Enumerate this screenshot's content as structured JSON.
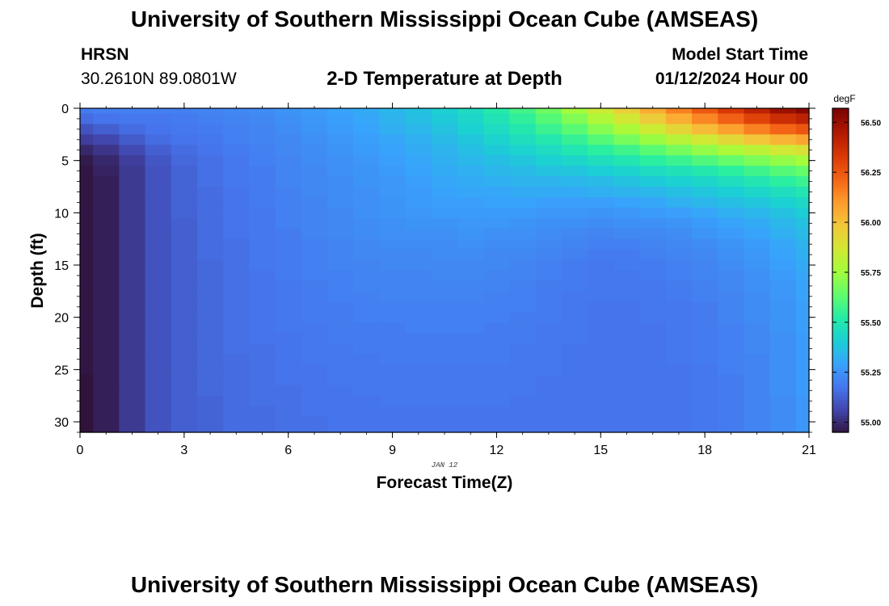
{
  "header": {
    "title": "University of Southern Mississippi Ocean Cube (AMSEAS)",
    "station": "HRSN",
    "coordinates": "30.2610N  89.0801W",
    "plot_title": "2-D Temperature at Depth",
    "model_start_label": "Model Start Time",
    "model_start_value": "01/12/2024 Hour 00"
  },
  "footer": {
    "title": "University of Southern Mississippi Ocean Cube (AMSEAS)"
  },
  "chart_data": {
    "type": "heatmap",
    "title": "2-D Temperature at Depth",
    "xlabel": "Forecast Time(Z)",
    "ylabel": "Depth (ft)",
    "x_date_label": "JAN 12",
    "xlim": [
      0,
      21
    ],
    "ylim": [
      31,
      0
    ],
    "x_ticks": [
      0,
      3,
      6,
      9,
      12,
      15,
      18,
      21
    ],
    "y_ticks": [
      0,
      5,
      10,
      15,
      20,
      25,
      30
    ],
    "colorbar": {
      "unit": "degF",
      "range": [
        54.95,
        56.57
      ],
      "ticks": [
        "56.50",
        "56.25",
        "56.00",
        "55.75",
        "55.50",
        "55.25",
        "55.00"
      ],
      "colormap": [
        "#30123b",
        "#4145ab",
        "#4675ed",
        "#39a2fc",
        "#1bcfd4",
        "#24eca6",
        "#61fc6c",
        "#a4fc3b",
        "#d1e834",
        "#f3c63a",
        "#fe9b2d",
        "#f36315",
        "#d93806",
        "#b11901",
        "#7a0402"
      ]
    },
    "x": [
      0,
      0.75,
      1.5,
      2.25,
      3,
      3.75,
      4.5,
      5.25,
      6,
      6.75,
      7.5,
      8.25,
      9,
      9.75,
      10.5,
      11.25,
      12,
      12.75,
      13.5,
      14.25,
      15,
      15.75,
      16.5,
      17.25,
      18,
      18.75,
      19.5,
      20.25,
      21
    ],
    "y": [
      0,
      1,
      2,
      3,
      4,
      5,
      6,
      7,
      8,
      9,
      10,
      11,
      12,
      13,
      14,
      15,
      16,
      17,
      18,
      19,
      20,
      21,
      22,
      23,
      24,
      25,
      26,
      27,
      28,
      29,
      30
    ],
    "z": [
      [
        55.2,
        55.21,
        55.21,
        55.21,
        55.21,
        55.22,
        55.23,
        55.24,
        55.26,
        55.28,
        55.3,
        55.32,
        55.35,
        55.38,
        55.42,
        55.46,
        55.52,
        55.59,
        55.67,
        55.76,
        55.86,
        55.96,
        56.06,
        56.16,
        56.25,
        56.34,
        56.42,
        56.5,
        56.54
      ],
      [
        55.16,
        55.18,
        55.19,
        55.19,
        55.2,
        55.21,
        55.22,
        55.23,
        55.25,
        55.27,
        55.29,
        55.31,
        55.34,
        55.37,
        55.4,
        55.44,
        55.49,
        55.55,
        55.62,
        55.7,
        55.79,
        55.88,
        55.97,
        56.06,
        56.15,
        56.23,
        56.31,
        56.38,
        56.42
      ],
      [
        55.1,
        55.13,
        55.16,
        55.18,
        55.19,
        55.2,
        55.21,
        55.22,
        55.24,
        55.26,
        55.28,
        55.3,
        55.33,
        55.35,
        55.38,
        55.42,
        55.46,
        55.51,
        55.57,
        55.63,
        55.71,
        55.78,
        55.86,
        55.94,
        56.02,
        56.09,
        56.16,
        56.22,
        56.26
      ],
      [
        55.05,
        55.07,
        55.12,
        55.16,
        55.18,
        55.19,
        55.21,
        55.22,
        55.23,
        55.25,
        55.27,
        55.29,
        55.31,
        55.33,
        55.36,
        55.39,
        55.43,
        55.47,
        55.51,
        55.56,
        55.62,
        55.68,
        55.74,
        55.81,
        55.87,
        55.93,
        55.99,
        56.04,
        56.08
      ],
      [
        55.0,
        55.03,
        55.08,
        55.13,
        55.16,
        55.18,
        55.2,
        55.21,
        55.23,
        55.24,
        55.26,
        55.28,
        55.3,
        55.32,
        55.34,
        55.37,
        55.4,
        55.43,
        55.46,
        55.5,
        55.54,
        55.58,
        55.63,
        55.68,
        55.73,
        55.78,
        55.82,
        55.87,
        55.9
      ],
      [
        54.97,
        55.0,
        55.05,
        55.11,
        55.15,
        55.17,
        55.19,
        55.21,
        55.22,
        55.24,
        55.25,
        55.27,
        55.29,
        55.31,
        55.33,
        55.35,
        55.37,
        55.39,
        55.42,
        55.44,
        55.47,
        55.5,
        55.54,
        55.57,
        55.61,
        55.65,
        55.69,
        55.73,
        55.76
      ],
      [
        54.96,
        54.99,
        55.04,
        55.1,
        55.14,
        55.17,
        55.19,
        55.2,
        55.22,
        55.23,
        55.25,
        55.26,
        55.28,
        55.3,
        55.32,
        55.33,
        55.35,
        55.36,
        55.38,
        55.39,
        55.41,
        55.43,
        55.46,
        55.48,
        55.51,
        55.54,
        55.58,
        55.62,
        55.65
      ],
      [
        54.96,
        54.98,
        55.04,
        55.1,
        55.14,
        55.17,
        55.19,
        55.2,
        55.22,
        55.23,
        55.24,
        55.26,
        55.27,
        55.29,
        55.31,
        55.32,
        55.33,
        55.34,
        55.34,
        55.35,
        55.36,
        55.38,
        55.4,
        55.42,
        55.44,
        55.47,
        55.5,
        55.54,
        55.57
      ],
      [
        54.96,
        54.98,
        55.04,
        55.1,
        55.14,
        55.16,
        55.18,
        55.2,
        55.21,
        55.23,
        55.24,
        55.25,
        55.27,
        55.28,
        55.3,
        55.31,
        55.31,
        55.32,
        55.32,
        55.32,
        55.33,
        55.34,
        55.35,
        55.37,
        55.39,
        55.41,
        55.44,
        55.47,
        55.5
      ],
      [
        54.96,
        54.98,
        55.04,
        55.1,
        55.14,
        55.16,
        55.18,
        55.2,
        55.21,
        55.22,
        55.24,
        55.25,
        55.26,
        55.28,
        55.29,
        55.29,
        55.3,
        55.3,
        55.29,
        55.29,
        55.29,
        55.3,
        55.31,
        55.33,
        55.35,
        55.37,
        55.39,
        55.42,
        55.45
      ],
      [
        54.96,
        54.98,
        55.04,
        55.1,
        55.14,
        55.16,
        55.18,
        55.19,
        55.21,
        55.22,
        55.23,
        55.25,
        55.26,
        55.27,
        55.28,
        55.28,
        55.28,
        55.28,
        55.27,
        55.27,
        55.26,
        55.27,
        55.28,
        55.29,
        55.31,
        55.33,
        55.35,
        55.38,
        55.41
      ],
      [
        54.96,
        54.98,
        55.04,
        55.1,
        55.13,
        55.16,
        55.18,
        55.19,
        55.21,
        55.22,
        55.23,
        55.24,
        55.25,
        55.26,
        55.26,
        55.27,
        55.27,
        55.26,
        55.25,
        55.25,
        55.24,
        55.25,
        55.25,
        55.26,
        55.28,
        55.3,
        55.32,
        55.35,
        55.38
      ],
      [
        54.96,
        54.98,
        55.04,
        55.1,
        55.13,
        55.16,
        55.18,
        55.19,
        55.2,
        55.22,
        55.23,
        55.24,
        55.25,
        55.25,
        55.25,
        55.26,
        55.25,
        55.25,
        55.24,
        55.23,
        55.22,
        55.23,
        55.23,
        55.24,
        55.26,
        55.28,
        55.3,
        55.33,
        55.36
      ],
      [
        54.96,
        54.98,
        55.04,
        55.1,
        55.13,
        55.16,
        55.17,
        55.19,
        55.2,
        55.21,
        55.22,
        55.23,
        55.24,
        55.24,
        55.24,
        55.25,
        55.24,
        55.24,
        55.23,
        55.22,
        55.21,
        55.21,
        55.22,
        55.23,
        55.24,
        55.26,
        55.28,
        55.31,
        55.34
      ],
      [
        54.96,
        54.98,
        55.04,
        55.1,
        55.13,
        55.16,
        55.17,
        55.19,
        55.2,
        55.21,
        55.22,
        55.23,
        55.23,
        55.23,
        55.24,
        55.24,
        55.23,
        55.23,
        55.22,
        55.21,
        55.2,
        55.2,
        55.21,
        55.22,
        55.23,
        55.25,
        55.27,
        55.3,
        55.33
      ],
      [
        54.96,
        54.98,
        55.04,
        55.1,
        55.13,
        55.15,
        55.17,
        55.19,
        55.2,
        55.21,
        55.22,
        55.22,
        55.23,
        55.23,
        55.23,
        55.23,
        55.23,
        55.22,
        55.21,
        55.2,
        55.19,
        55.2,
        55.2,
        55.21,
        55.22,
        55.24,
        55.26,
        55.29,
        55.32
      ],
      [
        54.96,
        54.98,
        55.04,
        55.1,
        55.13,
        55.15,
        55.17,
        55.18,
        55.2,
        55.21,
        55.21,
        55.22,
        55.22,
        55.22,
        55.23,
        55.23,
        55.22,
        55.22,
        55.21,
        55.2,
        55.19,
        55.19,
        55.2,
        55.21,
        55.22,
        55.23,
        55.25,
        55.28,
        55.31
      ],
      [
        54.96,
        54.98,
        55.04,
        55.1,
        55.13,
        55.15,
        55.17,
        55.18,
        55.19,
        55.2,
        55.21,
        55.22,
        55.22,
        55.22,
        55.22,
        55.22,
        55.22,
        55.21,
        55.2,
        55.2,
        55.19,
        55.19,
        55.19,
        55.2,
        55.21,
        55.23,
        55.25,
        55.27,
        55.3
      ],
      [
        54.96,
        54.98,
        55.04,
        55.1,
        55.13,
        55.15,
        55.17,
        55.18,
        55.19,
        55.2,
        55.21,
        55.21,
        55.22,
        55.22,
        55.22,
        55.22,
        55.21,
        55.21,
        55.2,
        55.19,
        55.19,
        55.19,
        55.19,
        55.2,
        55.21,
        55.22,
        55.24,
        55.27,
        55.3
      ],
      [
        54.96,
        54.98,
        55.04,
        55.1,
        55.13,
        55.15,
        55.17,
        55.18,
        55.19,
        55.2,
        55.2,
        55.21,
        55.21,
        55.21,
        55.21,
        55.21,
        55.21,
        55.21,
        55.2,
        55.19,
        55.18,
        55.18,
        55.19,
        55.19,
        55.2,
        55.22,
        55.24,
        55.26,
        55.29
      ],
      [
        54.96,
        54.98,
        55.04,
        55.1,
        55.13,
        55.15,
        55.17,
        55.18,
        55.19,
        55.2,
        55.2,
        55.21,
        55.21,
        55.21,
        55.21,
        55.21,
        55.21,
        55.2,
        55.2,
        55.19,
        55.18,
        55.18,
        55.19,
        55.19,
        55.2,
        55.22,
        55.24,
        55.26,
        55.29
      ],
      [
        54.96,
        54.98,
        55.04,
        55.1,
        55.13,
        55.15,
        55.17,
        55.18,
        55.19,
        55.19,
        55.2,
        55.2,
        55.2,
        55.21,
        55.21,
        55.21,
        55.2,
        55.2,
        55.19,
        55.19,
        55.18,
        55.18,
        55.18,
        55.19,
        55.2,
        55.21,
        55.23,
        55.26,
        55.29
      ],
      [
        54.96,
        54.98,
        55.04,
        55.1,
        55.13,
        55.15,
        55.17,
        55.18,
        55.18,
        55.19,
        55.2,
        55.2,
        55.2,
        55.2,
        55.2,
        55.2,
        55.2,
        55.2,
        55.19,
        55.19,
        55.18,
        55.18,
        55.18,
        55.19,
        55.2,
        55.21,
        55.23,
        55.25,
        55.28
      ],
      [
        54.96,
        54.98,
        55.04,
        55.1,
        55.13,
        55.15,
        55.17,
        55.17,
        55.18,
        55.19,
        55.19,
        55.2,
        55.2,
        55.2,
        55.2,
        55.2,
        55.2,
        55.19,
        55.19,
        55.18,
        55.18,
        55.18,
        55.18,
        55.19,
        55.2,
        55.21,
        55.23,
        55.25,
        55.28
      ],
      [
        54.96,
        54.98,
        55.04,
        55.1,
        55.13,
        55.15,
        55.16,
        55.17,
        55.18,
        55.19,
        55.19,
        55.19,
        55.2,
        55.2,
        55.2,
        55.2,
        55.2,
        55.19,
        55.19,
        55.18,
        55.18,
        55.18,
        55.18,
        55.19,
        55.2,
        55.21,
        55.22,
        55.25,
        55.28
      ],
      [
        54.96,
        54.98,
        55.04,
        55.1,
        55.13,
        55.15,
        55.16,
        55.17,
        55.18,
        55.18,
        55.19,
        55.19,
        55.19,
        55.19,
        55.19,
        55.19,
        55.19,
        55.19,
        55.19,
        55.18,
        55.18,
        55.18,
        55.18,
        55.18,
        55.19,
        55.21,
        55.22,
        55.25,
        55.28
      ],
      [
        54.94,
        54.98,
        55.04,
        55.1,
        55.13,
        55.15,
        55.16,
        55.17,
        55.18,
        55.18,
        55.19,
        55.19,
        55.19,
        55.19,
        55.19,
        55.19,
        55.19,
        55.19,
        55.18,
        55.18,
        55.18,
        55.18,
        55.18,
        55.18,
        55.19,
        55.2,
        55.22,
        55.25,
        55.28
      ],
      [
        54.94,
        54.98,
        55.04,
        55.1,
        55.13,
        55.15,
        55.16,
        55.17,
        55.17,
        55.18,
        55.18,
        55.19,
        55.19,
        55.19,
        55.19,
        55.19,
        55.19,
        55.19,
        55.18,
        55.18,
        55.18,
        55.18,
        55.18,
        55.18,
        55.19,
        55.2,
        55.22,
        55.25,
        55.28
      ],
      [
        54.94,
        54.98,
        55.04,
        55.1,
        55.13,
        55.14,
        55.16,
        55.17,
        55.17,
        55.18,
        55.18,
        55.18,
        55.19,
        55.19,
        55.19,
        55.19,
        55.19,
        55.18,
        55.18,
        55.18,
        55.18,
        55.18,
        55.18,
        55.18,
        55.19,
        55.2,
        55.22,
        55.24,
        55.27
      ],
      [
        54.94,
        54.98,
        55.04,
        55.1,
        55.13,
        55.14,
        55.16,
        55.16,
        55.17,
        55.18,
        55.18,
        55.18,
        55.18,
        55.18,
        55.18,
        55.18,
        55.18,
        55.18,
        55.18,
        55.18,
        55.18,
        55.18,
        55.18,
        55.18,
        55.19,
        55.2,
        55.22,
        55.24,
        55.27
      ],
      [
        54.94,
        54.98,
        55.04,
        55.1,
        55.13,
        55.14,
        55.16,
        55.16,
        55.17,
        55.17,
        55.18,
        55.18,
        55.18,
        55.18,
        55.18,
        55.18,
        55.18,
        55.18,
        55.18,
        55.18,
        55.18,
        55.18,
        55.18,
        55.18,
        55.19,
        55.2,
        55.22,
        55.24,
        55.27
      ]
    ]
  }
}
